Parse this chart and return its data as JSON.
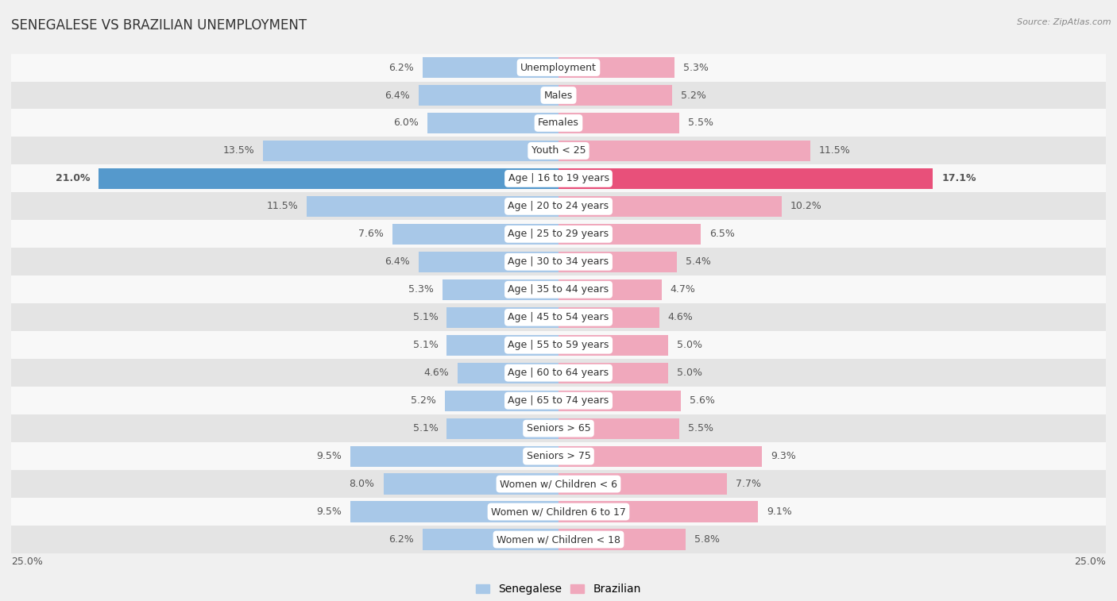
{
  "title": "SENEGALESE VS BRAZILIAN UNEMPLOYMENT",
  "source": "Source: ZipAtlas.com",
  "categories": [
    "Unemployment",
    "Males",
    "Females",
    "Youth < 25",
    "Age | 16 to 19 years",
    "Age | 20 to 24 years",
    "Age | 25 to 29 years",
    "Age | 30 to 34 years",
    "Age | 35 to 44 years",
    "Age | 45 to 54 years",
    "Age | 55 to 59 years",
    "Age | 60 to 64 years",
    "Age | 65 to 74 years",
    "Seniors > 65",
    "Seniors > 75",
    "Women w/ Children < 6",
    "Women w/ Children 6 to 17",
    "Women w/ Children < 18"
  ],
  "senegalese": [
    6.2,
    6.4,
    6.0,
    13.5,
    21.0,
    11.5,
    7.6,
    6.4,
    5.3,
    5.1,
    5.1,
    4.6,
    5.2,
    5.1,
    9.5,
    8.0,
    9.5,
    6.2
  ],
  "brazilian": [
    5.3,
    5.2,
    5.5,
    11.5,
    17.1,
    10.2,
    6.5,
    5.4,
    4.7,
    4.6,
    5.0,
    5.0,
    5.6,
    5.5,
    9.3,
    7.7,
    9.1,
    5.8
  ],
  "senegalese_color": "#a8c8e8",
  "brazilian_color": "#f0a8bc",
  "senegalese_highlight_color": "#5599cc",
  "brazilian_highlight_color": "#e8507a",
  "highlight_row": 4,
  "xlim": 25.0,
  "background_color": "#f0f0f0",
  "row_bg_light": "#f8f8f8",
  "row_bg_dark": "#e4e4e4",
  "label_fontsize": 9,
  "title_fontsize": 12,
  "legend_labels": [
    "Senegalese",
    "Brazilian"
  ]
}
